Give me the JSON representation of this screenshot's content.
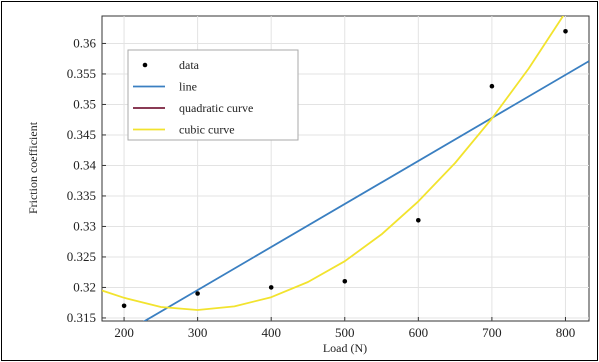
{
  "chart_data": {
    "type": "scatter",
    "xlabel": "Load (N)",
    "ylabel": "Friction coefficient",
    "xlim": [
      170,
      832
    ],
    "ylim": [
      0.3145,
      0.3645
    ],
    "x_ticks": [
      200,
      300,
      400,
      500,
      600,
      700,
      800
    ],
    "y_ticks": [
      0.315,
      0.32,
      0.325,
      0.33,
      0.335,
      0.34,
      0.345,
      0.35,
      0.355,
      0.36
    ],
    "y_tick_labels": [
      "0.315",
      "0.32",
      "0.325",
      "0.33",
      "0.335",
      "0.34",
      "0.345",
      "0.35",
      "0.355",
      "0.36"
    ],
    "legend_position": "top-left",
    "series": [
      {
        "name": "data",
        "kind": "points",
        "color": "#000000",
        "x": [
          200,
          300,
          400,
          500,
          600,
          700,
          800
        ],
        "y": [
          0.317,
          0.319,
          0.32,
          0.321,
          0.331,
          0.353,
          0.362
        ]
      },
      {
        "name": "line",
        "kind": "line",
        "color": "#3a7fc1",
        "x": [
          170,
          832
        ],
        "y": [
          0.3104,
          0.3571
        ]
      },
      {
        "name": "quadratic curve",
        "kind": "line",
        "color": "#7a1f3d",
        "x": [],
        "y": []
      },
      {
        "name": "cubic curve",
        "kind": "line",
        "color": "#f2e32e",
        "x": [
          170,
          200,
          250,
          300,
          350,
          400,
          450,
          500,
          550,
          600,
          650,
          700,
          750,
          800,
          820
        ],
        "y": [
          0.3195,
          0.3183,
          0.3168,
          0.3163,
          0.3169,
          0.3184,
          0.3209,
          0.3243,
          0.3287,
          0.3341,
          0.3404,
          0.3477,
          0.3559,
          0.3651,
          0.369
        ]
      }
    ]
  }
}
